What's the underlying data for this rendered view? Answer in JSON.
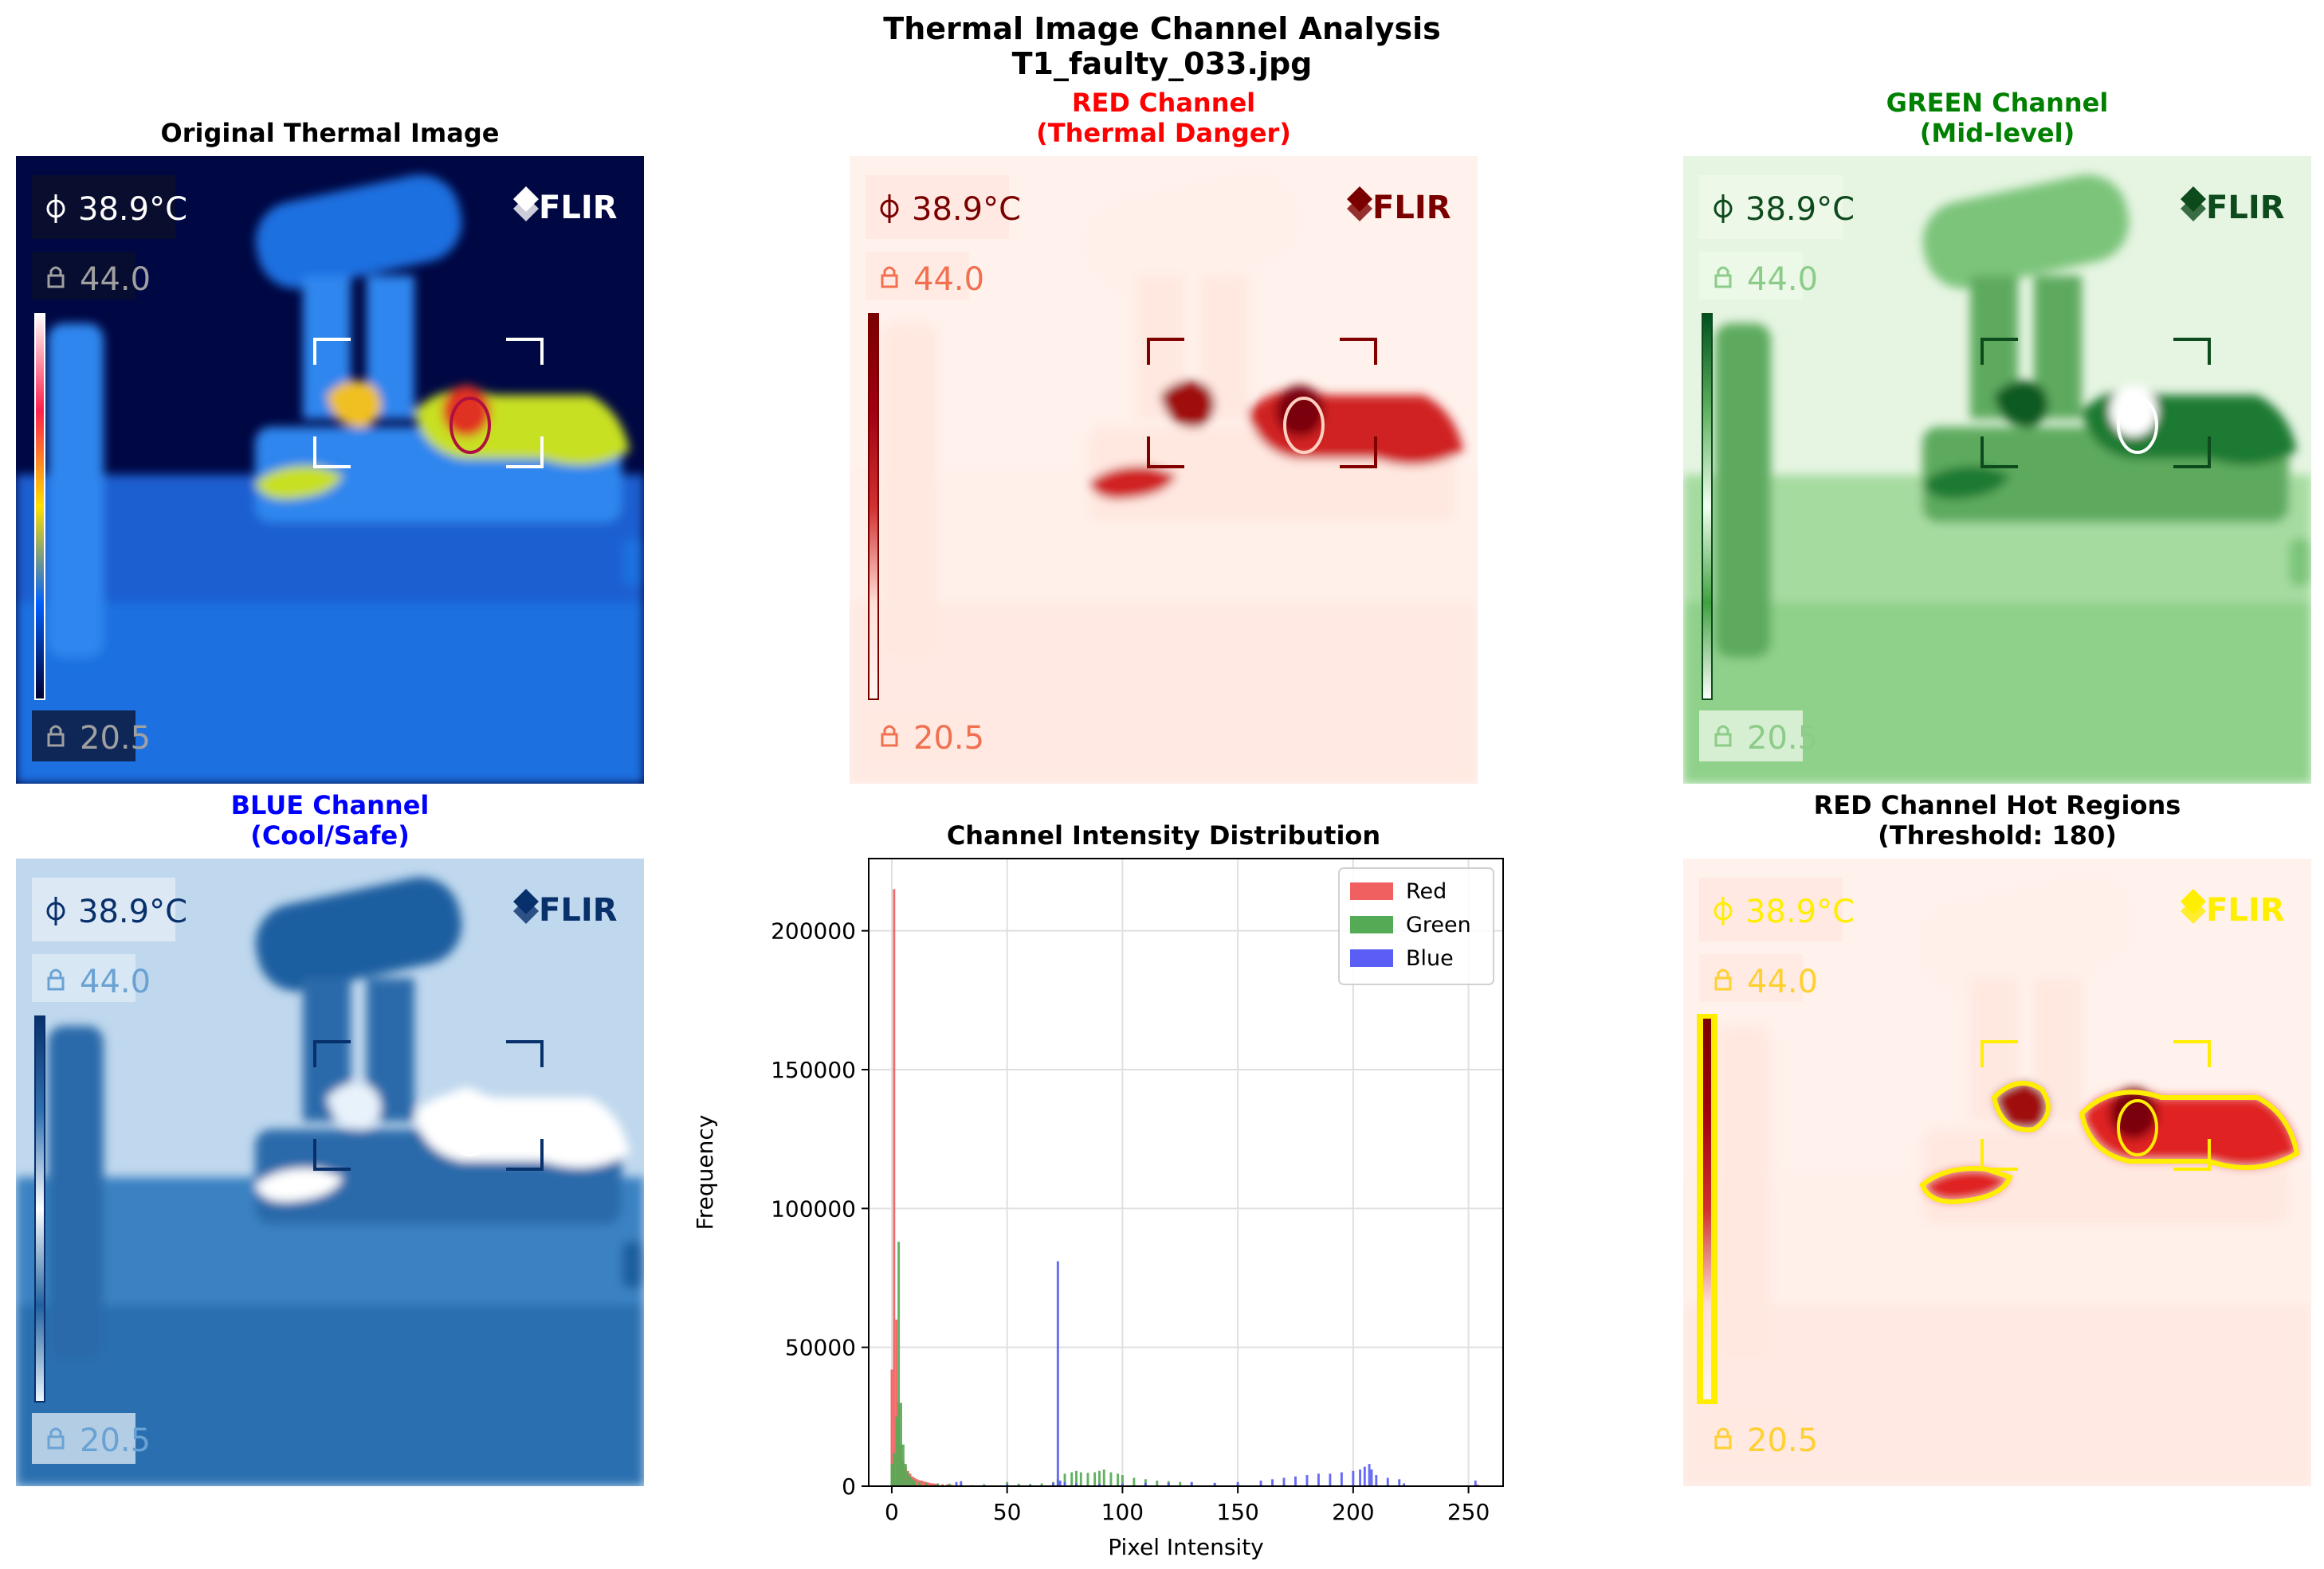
{
  "figure": {
    "title_line1": "Thermal Image Channel Analysis",
    "title_line2": "T1_faulty_033.jpg"
  },
  "overlay": {
    "spot_temp": "38.9°C",
    "max_temp": "44.0",
    "min_temp": "20.5",
    "brand": "FLIR"
  },
  "panels": [
    {
      "id": "original",
      "title_line1": "Original Thermal Image",
      "title_line2": "",
      "title_color": "#000000"
    },
    {
      "id": "red",
      "title_line1": "RED Channel",
      "title_line2": "(Thermal Danger)",
      "title_color": "#ff0000"
    },
    {
      "id": "green",
      "title_line1": "GREEN Channel",
      "title_line2": "(Mid-level)",
      "title_color": "#008000"
    },
    {
      "id": "blue",
      "title_line1": "BLUE Channel",
      "title_line2": "(Cool/Safe)",
      "title_color": "#0000ff"
    },
    {
      "id": "histogram",
      "title_line1": "Channel Intensity Distribution",
      "title_line2": "",
      "title_color": "#000000"
    },
    {
      "id": "hot",
      "title_line1": "RED Channel Hot Regions",
      "title_line2": "(Threshold: 180)",
      "title_color": "#000000"
    }
  ],
  "chart_data": {
    "type": "bar",
    "title": "Channel Intensity Distribution",
    "xlabel": "Pixel Intensity",
    "ylabel": "Frequency",
    "xlim": [
      -10,
      265
    ],
    "ylim": [
      0,
      226000
    ],
    "xticks": [
      0,
      50,
      100,
      150,
      200,
      250
    ],
    "yticks": [
      0,
      50000,
      100000,
      150000,
      200000
    ],
    "grid": true,
    "legend_position": "top-right",
    "bin_width": 1,
    "series": [
      {
        "name": "Red",
        "color": "#f06060",
        "points": [
          [
            0,
            42000
          ],
          [
            1,
            215000
          ],
          [
            2,
            60000
          ],
          [
            3,
            30000
          ],
          [
            4,
            15000
          ],
          [
            5,
            9000
          ],
          [
            6,
            7000
          ],
          [
            7,
            5500
          ],
          [
            8,
            4500
          ],
          [
            9,
            3500
          ],
          [
            10,
            3000
          ],
          [
            11,
            2500
          ],
          [
            12,
            2200
          ],
          [
            13,
            2000
          ],
          [
            14,
            1700
          ],
          [
            15,
            1500
          ],
          [
            16,
            1300
          ],
          [
            17,
            1100
          ],
          [
            18,
            1000
          ],
          [
            19,
            900
          ],
          [
            20,
            800
          ],
          [
            22,
            700
          ],
          [
            24,
            600
          ],
          [
            26,
            500
          ],
          [
            28,
            450
          ],
          [
            30,
            400
          ],
          [
            35,
            350
          ],
          [
            40,
            300
          ],
          [
            50,
            250
          ],
          [
            60,
            200
          ],
          [
            70,
            200
          ],
          [
            80,
            150
          ],
          [
            90,
            150
          ],
          [
            100,
            120
          ],
          [
            120,
            100
          ],
          [
            150,
            80
          ],
          [
            180,
            60
          ],
          [
            200,
            50
          ],
          [
            220,
            40
          ],
          [
            250,
            30
          ],
          [
            254,
            600
          ]
        ]
      },
      {
        "name": "Green",
        "color": "#55aa55",
        "points": [
          [
            0,
            8000
          ],
          [
            1,
            12000
          ],
          [
            2,
            25000
          ],
          [
            3,
            88000
          ],
          [
            4,
            30000
          ],
          [
            5,
            15000
          ],
          [
            6,
            8000
          ],
          [
            7,
            5000
          ],
          [
            8,
            3500
          ],
          [
            9,
            2500
          ],
          [
            10,
            2000
          ],
          [
            12,
            1500
          ],
          [
            15,
            1200
          ],
          [
            20,
            1000
          ],
          [
            25,
            900
          ],
          [
            30,
            800
          ],
          [
            40,
            700
          ],
          [
            50,
            1500
          ],
          [
            55,
            900
          ],
          [
            60,
            800
          ],
          [
            65,
            1000
          ],
          [
            70,
            1500
          ],
          [
            72,
            2500
          ],
          [
            75,
            4500
          ],
          [
            78,
            5000
          ],
          [
            80,
            5500
          ],
          [
            82,
            5000
          ],
          [
            85,
            4800
          ],
          [
            88,
            5000
          ],
          [
            90,
            5500
          ],
          [
            92,
            6000
          ],
          [
            95,
            5000
          ],
          [
            98,
            4500
          ],
          [
            100,
            4000
          ],
          [
            105,
            3000
          ],
          [
            110,
            2500
          ],
          [
            115,
            2000
          ],
          [
            120,
            1800
          ],
          [
            125,
            1500
          ],
          [
            130,
            1200
          ],
          [
            140,
            1000
          ],
          [
            150,
            800
          ],
          [
            160,
            600
          ],
          [
            170,
            500
          ],
          [
            180,
            400
          ],
          [
            200,
            300
          ],
          [
            220,
            200
          ]
        ]
      },
      {
        "name": "Blue",
        "color": "#5a5ef5",
        "points": [
          [
            28,
            1500
          ],
          [
            30,
            1800
          ],
          [
            50,
            800
          ],
          [
            70,
            1200
          ],
          [
            72,
            81000
          ],
          [
            73,
            2000
          ],
          [
            75,
            1500
          ],
          [
            80,
            1000
          ],
          [
            90,
            900
          ],
          [
            100,
            1000
          ],
          [
            110,
            1200
          ],
          [
            120,
            1200
          ],
          [
            130,
            1500
          ],
          [
            140,
            1200
          ],
          [
            150,
            1500
          ],
          [
            160,
            2000
          ],
          [
            165,
            2500
          ],
          [
            170,
            3000
          ],
          [
            175,
            3500
          ],
          [
            180,
            4000
          ],
          [
            185,
            4500
          ],
          [
            190,
            4500
          ],
          [
            195,
            5000
          ],
          [
            200,
            5500
          ],
          [
            203,
            6000
          ],
          [
            205,
            7000
          ],
          [
            207,
            8000
          ],
          [
            208,
            6000
          ],
          [
            210,
            4000
          ],
          [
            215,
            3000
          ],
          [
            220,
            2500
          ],
          [
            222,
            1000
          ],
          [
            253,
            2000
          ]
        ]
      }
    ]
  }
}
